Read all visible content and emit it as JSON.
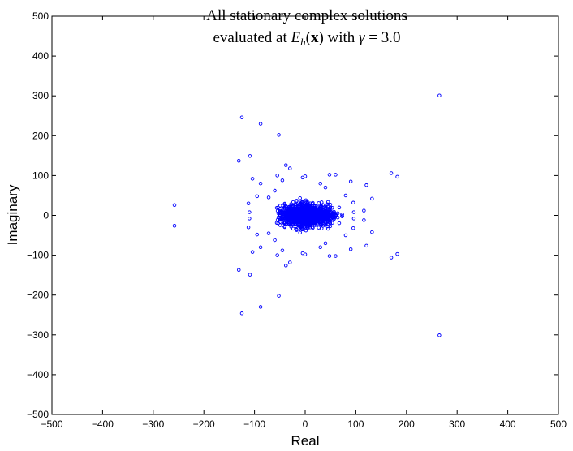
{
  "chart_data": {
    "type": "scatter",
    "title_lines": [
      "All stationary complex solutions",
      "evaluated at E_h(x) with γ = 3.0"
    ],
    "xlabel": "Real",
    "ylabel": "Imaginary",
    "xlim": [
      -500,
      500
    ],
    "ylim": [
      -500,
      500
    ],
    "xticks": [
      -500,
      -400,
      -300,
      -200,
      -100,
      0,
      100,
      200,
      300,
      400,
      500
    ],
    "yticks": [
      -500,
      -400,
      -300,
      -200,
      -100,
      0,
      100,
      200,
      300,
      400,
      500
    ],
    "x_tick_labels": [
      "−500",
      "−400",
      "−300",
      "−200",
      "−100",
      "0",
      "100",
      "200",
      "300",
      "400",
      "500"
    ],
    "y_tick_labels": [
      "−500",
      "−400",
      "−300",
      "−200",
      "−100",
      "0",
      "100",
      "200",
      "300",
      "400",
      "500"
    ],
    "grid": false,
    "marker": "circle",
    "marker_color": "#0000ff",
    "outlier_points": [
      [
        265,
        301
      ],
      [
        265,
        -301
      ],
      [
        -125,
        246
      ],
      [
        -125,
        -246
      ],
      [
        -88,
        230
      ],
      [
        -88,
        -230
      ],
      [
        -52,
        202
      ],
      [
        -52,
        -202
      ],
      [
        -258,
        26
      ],
      [
        -258,
        -26
      ],
      [
        -131,
        137
      ],
      [
        -131,
        -137
      ],
      [
        -109,
        149
      ],
      [
        -109,
        -149
      ],
      [
        170,
        106
      ],
      [
        170,
        -106
      ],
      [
        182,
        97
      ],
      [
        182,
        -97
      ],
      [
        121,
        76
      ],
      [
        121,
        -76
      ],
      [
        132,
        42
      ],
      [
        132,
        -42
      ],
      [
        -38,
        126
      ],
      [
        -38,
        -126
      ],
      [
        -30,
        118
      ],
      [
        -30,
        -118
      ],
      [
        -104,
        92
      ],
      [
        -104,
        -92
      ],
      [
        -88,
        80
      ],
      [
        -88,
        -80
      ],
      [
        -55,
        100
      ],
      [
        -55,
        -100
      ],
      [
        -45,
        88
      ],
      [
        -45,
        -88
      ],
      [
        -112,
        30
      ],
      [
        -112,
        -30
      ],
      [
        -110,
        8
      ],
      [
        -110,
        -8
      ],
      [
        -60,
        62
      ],
      [
        -60,
        -62
      ],
      [
        -72,
        45
      ],
      [
        -72,
        -45
      ],
      [
        -95,
        48
      ],
      [
        -95,
        -48
      ],
      [
        -5,
        95
      ],
      [
        -5,
        -95
      ],
      [
        0,
        98
      ],
      [
        0,
        -98
      ],
      [
        48,
        102
      ],
      [
        48,
        -102
      ],
      [
        60,
        102
      ],
      [
        60,
        -102
      ],
      [
        90,
        85
      ],
      [
        90,
        -85
      ],
      [
        96,
        8
      ],
      [
        96,
        -8
      ],
      [
        116,
        12
      ],
      [
        116,
        -12
      ],
      [
        95,
        32
      ],
      [
        95,
        -32
      ],
      [
        80,
        50
      ],
      [
        80,
        -50
      ],
      [
        30,
        80
      ],
      [
        30,
        -80
      ],
      [
        40,
        70
      ],
      [
        40,
        -70
      ]
    ],
    "cluster": {
      "center": [
        5,
        0
      ],
      "x_halfwidth": 68,
      "y_halfwidth": 56,
      "point_count": 1400,
      "seed": 7
    }
  },
  "title": {
    "line1": "All stationary complex solutions",
    "line2_text_1": "evaluated at ",
    "line2_E": "E",
    "line2_h": "h",
    "line2_paren_open": "(",
    "line2_x": "x",
    "line2_paren_close": ")",
    "line2_text_2": " with ",
    "line2_gamma": "γ",
    "line2_eq": " = 3.0"
  },
  "axes": {
    "xlabel": "Real",
    "ylabel": "Imaginary"
  }
}
